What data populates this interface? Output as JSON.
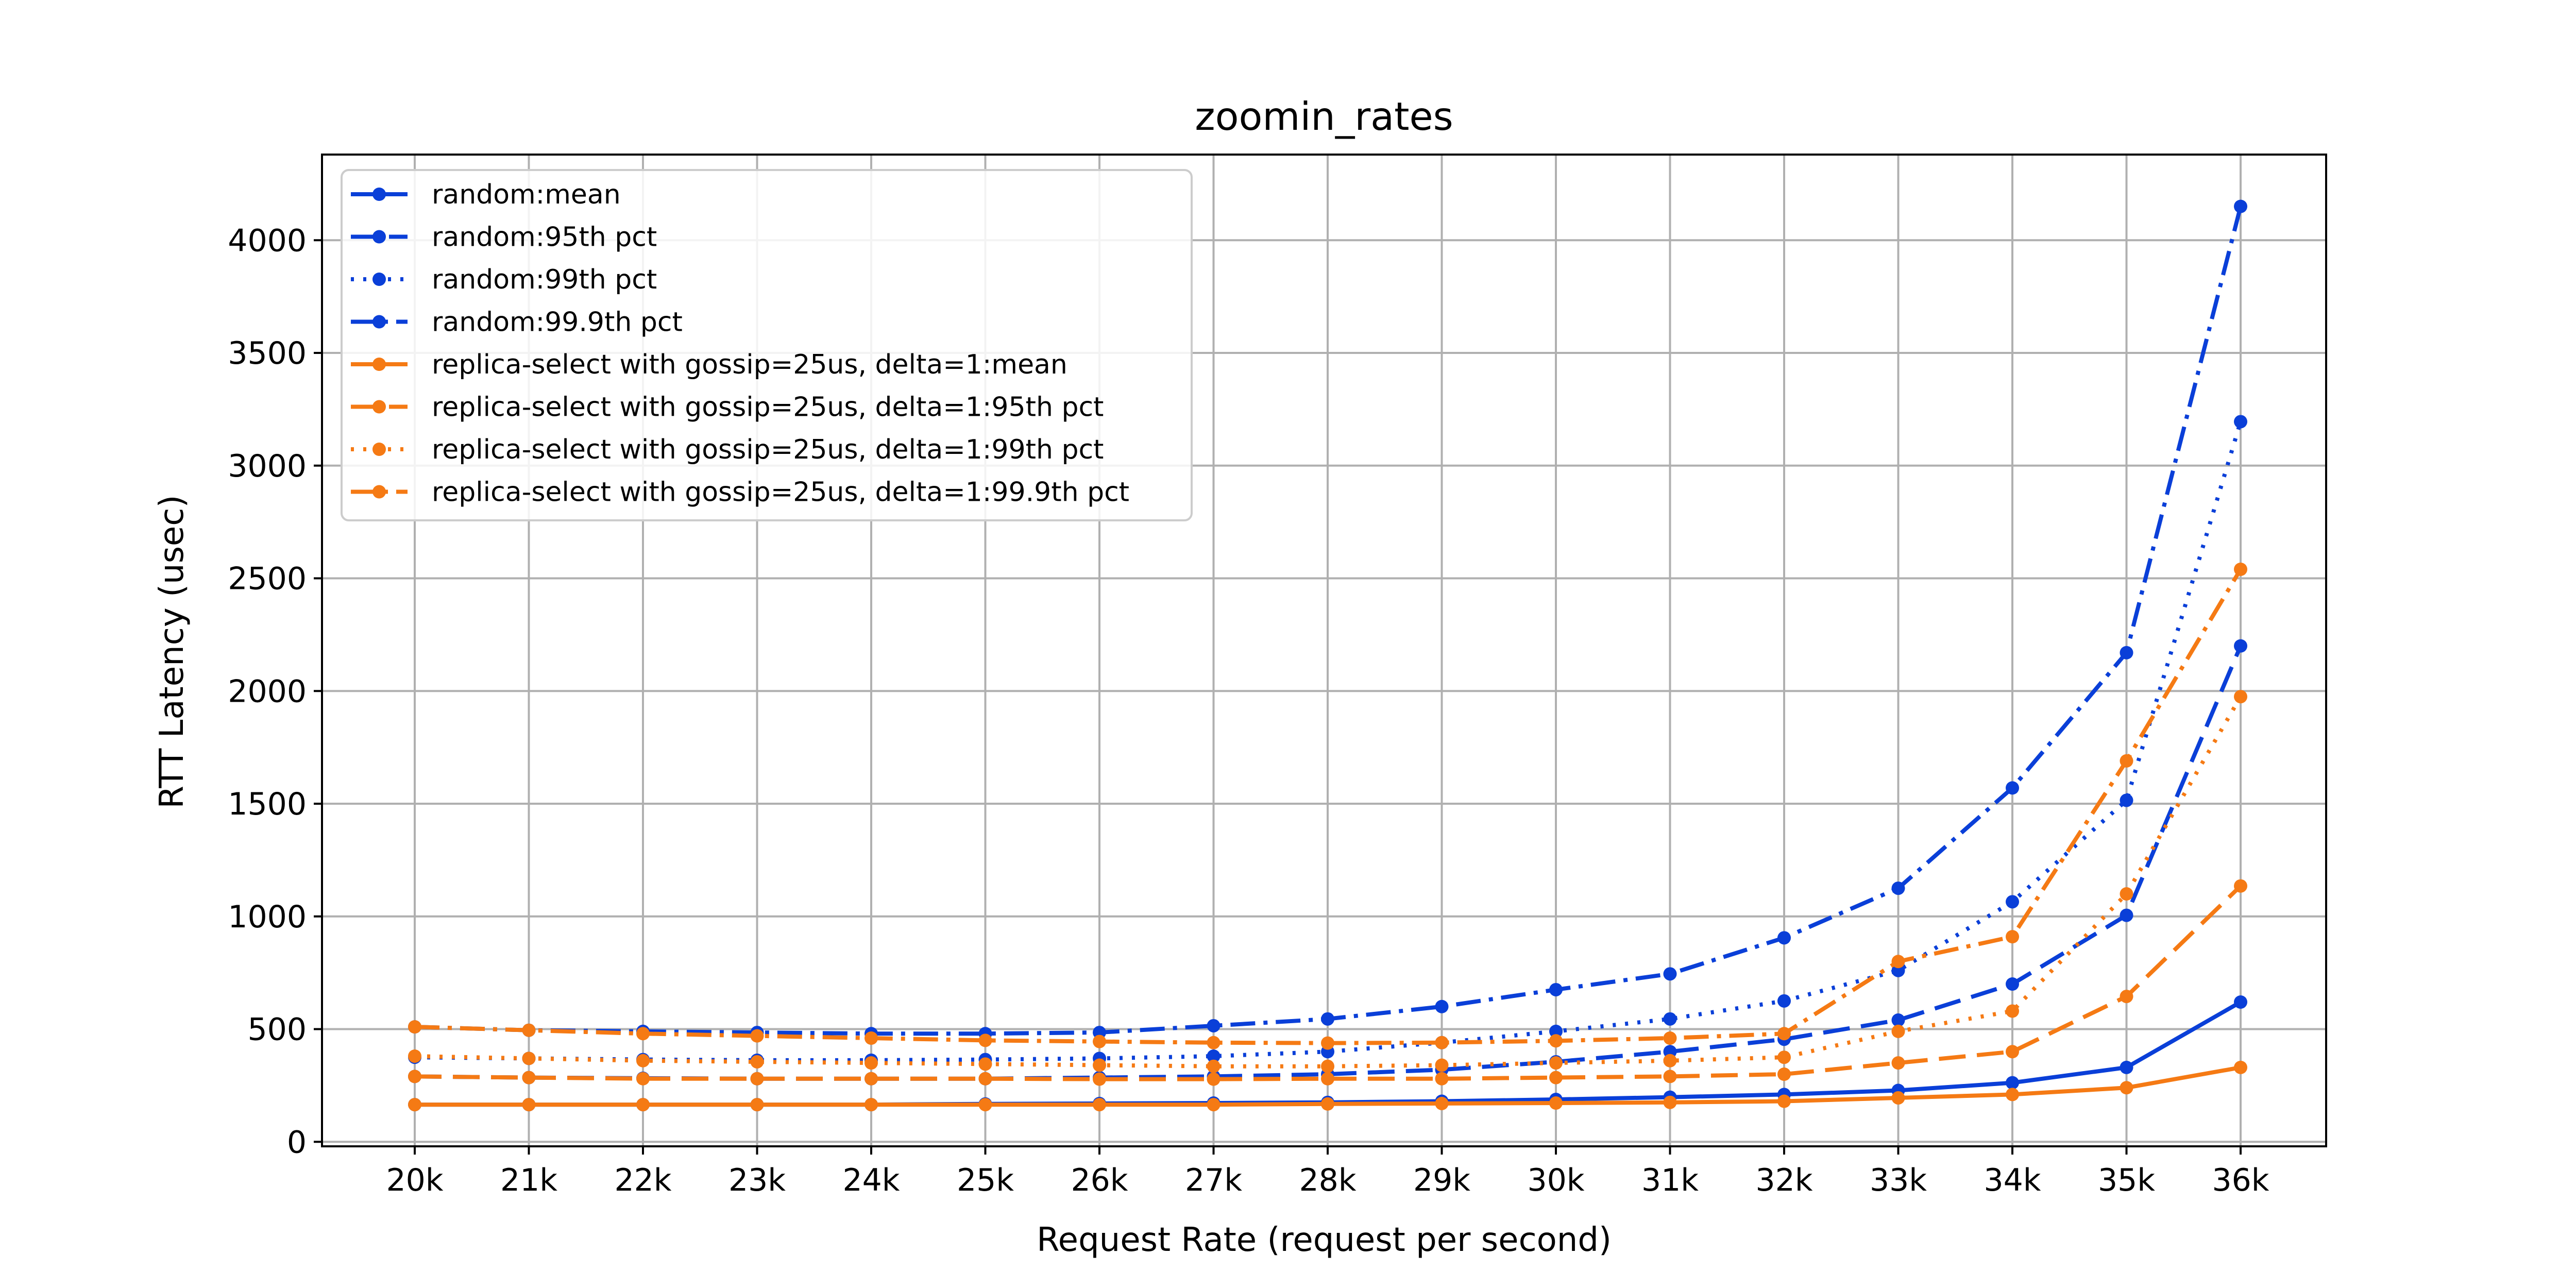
{
  "colors": {
    "random": "#0a3fd8",
    "replica": "#f57a14"
  },
  "chart_data": {
    "type": "line",
    "title": "zoomin_rates",
    "xlabel": "Request Rate (request per second)",
    "ylabel": "RTT Latency (usec)",
    "categories": [
      "20k",
      "21k",
      "22k",
      "23k",
      "24k",
      "25k",
      "26k",
      "27k",
      "28k",
      "29k",
      "30k",
      "31k",
      "32k",
      "33k",
      "34k",
      "35k",
      "36k"
    ],
    "ylim": [
      -20,
      4380
    ],
    "yticks": [
      0,
      500,
      1000,
      1500,
      2000,
      2500,
      3000,
      3500,
      4000
    ],
    "grid": true,
    "legend_position": "top-left",
    "series": [
      {
        "name": "random:mean",
        "group": "random",
        "style": "solid",
        "values": [
          165,
          165,
          165,
          165,
          165,
          168,
          170,
          172,
          175,
          180,
          188,
          198,
          210,
          228,
          262,
          330,
          620
        ]
      },
      {
        "name": "random:95th pct",
        "group": "random",
        "style": "dashed",
        "values": [
          290,
          285,
          282,
          280,
          280,
          280,
          285,
          290,
          300,
          320,
          355,
          400,
          455,
          540,
          700,
          1005,
          2200
        ]
      },
      {
        "name": "random:99th pct",
        "group": "random",
        "style": "dotted",
        "values": [
          375,
          370,
          365,
          362,
          362,
          365,
          370,
          380,
          400,
          440,
          490,
          545,
          625,
          760,
          1065,
          1515,
          3195
        ]
      },
      {
        "name": "random:99.9th pct",
        "group": "random",
        "style": "dashdot",
        "values": [
          510,
          495,
          490,
          485,
          480,
          480,
          485,
          515,
          545,
          600,
          675,
          745,
          905,
          1125,
          1570,
          2170,
          4150
        ]
      },
      {
        "name": "replica-select with gossip=25us, delta=1:mean",
        "group": "replica",
        "style": "solid",
        "values": [
          165,
          165,
          165,
          165,
          165,
          165,
          165,
          165,
          168,
          170,
          172,
          175,
          180,
          195,
          210,
          240,
          330
        ]
      },
      {
        "name": "replica-select with gossip=25us, delta=1:95th pct",
        "group": "replica",
        "style": "dashed",
        "values": [
          290,
          285,
          280,
          280,
          280,
          280,
          278,
          278,
          280,
          280,
          285,
          290,
          300,
          350,
          400,
          645,
          1135
        ]
      },
      {
        "name": "replica-select with gossip=25us, delta=1:99th pct",
        "group": "replica",
        "style": "dotted",
        "values": [
          380,
          370,
          360,
          355,
          350,
          345,
          340,
          335,
          335,
          340,
          350,
          360,
          375,
          490,
          580,
          1100,
          1975
        ]
      },
      {
        "name": "replica-select with gossip=25us, delta=1:99.9th pct",
        "group": "replica",
        "style": "dashdot",
        "values": [
          510,
          495,
          480,
          470,
          460,
          450,
          445,
          440,
          438,
          440,
          448,
          460,
          480,
          800,
          910,
          1690,
          2540
        ]
      }
    ]
  }
}
